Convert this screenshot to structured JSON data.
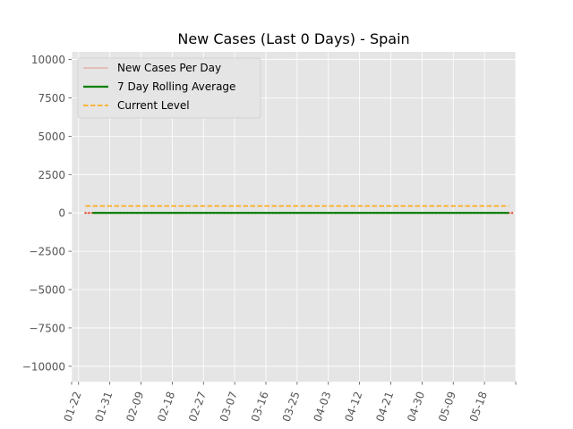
{
  "chart_data": {
    "type": "line",
    "title": "New Cases (Last 0 Days) - Spain",
    "xlabel": "",
    "ylabel": "",
    "x_tick_labels": [
      "01-22",
      "01-31",
      "02-09",
      "02-18",
      "02-27",
      "03-07",
      "03-16",
      "03-25",
      "04-03",
      "04-12",
      "04-21",
      "04-30",
      "05-09",
      "05-18"
    ],
    "x_tick_day_index": [
      0,
      9,
      18,
      27,
      36,
      45,
      54,
      63,
      72,
      81,
      90,
      99,
      108,
      117
    ],
    "x_extra_ticks": [
      -2,
      126
    ],
    "xlim": [
      -2,
      126
    ],
    "ylim": [
      -11000,
      10500
    ],
    "y_ticks": [
      -10000,
      -7500,
      -5000,
      -2500,
      0,
      2500,
      5000,
      7500,
      10000
    ],
    "y_tick_labels": [
      "−10000",
      "−7500",
      "−5000",
      "−2500",
      "0",
      "2500",
      "5000",
      "7500",
      "10000"
    ],
    "grid": true,
    "legend_position": "top-left",
    "colors": {
      "background": "#e5e5e5",
      "grid": "#ffffff",
      "daily": "#e24a33",
      "rolling": "#008000",
      "current": "#ffa500"
    },
    "series": [
      {
        "name": "New Cases Per Day",
        "kind": "daily",
        "start_day_index": 2,
        "values": [
          0,
          0,
          0,
          0,
          0,
          0,
          0,
          0,
          0,
          0,
          0,
          0,
          0,
          0,
          0,
          0,
          0,
          0,
          0,
          0,
          0,
          0,
          0,
          0,
          0,
          0,
          0,
          0,
          0,
          0,
          0,
          0,
          0,
          0,
          0,
          0,
          0,
          0,
          0,
          0,
          0,
          0,
          0,
          0,
          0,
          0,
          0,
          0,
          0,
          0,
          0,
          0,
          0,
          0,
          0,
          0,
          0,
          0,
          0,
          0,
          0,
          0,
          0,
          0,
          0,
          0,
          0,
          0,
          0,
          0,
          0,
          0,
          0,
          0,
          0,
          0,
          0,
          0,
          0,
          0,
          0,
          0,
          0,
          0,
          0,
          0,
          0,
          0,
          0,
          0,
          0,
          0,
          0,
          0,
          0,
          0,
          0,
          0,
          0,
          0,
          0,
          0,
          0,
          0,
          0,
          0,
          0,
          0,
          0,
          0,
          0,
          0,
          0,
          0,
          0,
          0,
          0,
          0,
          0,
          0,
          0,
          0,
          0,
          0
        ]
      },
      {
        "name": "7 Day Rolling Average",
        "kind": "rolling",
        "start_day_index": 4,
        "values": [
          0,
          0,
          0,
          0,
          0,
          0,
          0,
          0,
          0,
          0,
          0,
          0,
          0,
          0,
          0,
          0,
          0,
          0,
          0,
          0,
          0,
          0,
          0,
          0,
          0,
          0,
          0,
          0,
          0,
          0,
          0,
          0,
          0,
          0,
          0,
          0,
          0,
          0,
          0,
          0,
          0,
          0,
          0,
          0,
          0,
          0,
          0,
          0,
          0,
          0,
          0,
          0,
          0,
          0,
          0,
          0,
          0,
          0,
          0,
          0,
          0,
          0,
          0,
          0,
          0,
          0,
          0,
          0,
          0,
          0,
          0,
          0,
          0,
          0,
          0,
          0,
          0,
          0,
          0,
          0,
          0,
          0,
          0,
          0,
          0,
          0,
          0,
          0,
          0,
          0,
          0,
          0,
          0,
          0,
          0,
          0,
          0,
          0,
          0,
          0,
          0,
          0,
          0,
          0,
          0,
          0,
          0,
          0,
          0,
          0,
          0,
          0,
          0,
          0,
          0,
          0,
          0,
          0,
          0,
          0,
          0
        ]
      },
      {
        "name": "Current Level",
        "kind": "current",
        "x_range": [
          2,
          124
        ],
        "value": 450
      }
    ]
  }
}
